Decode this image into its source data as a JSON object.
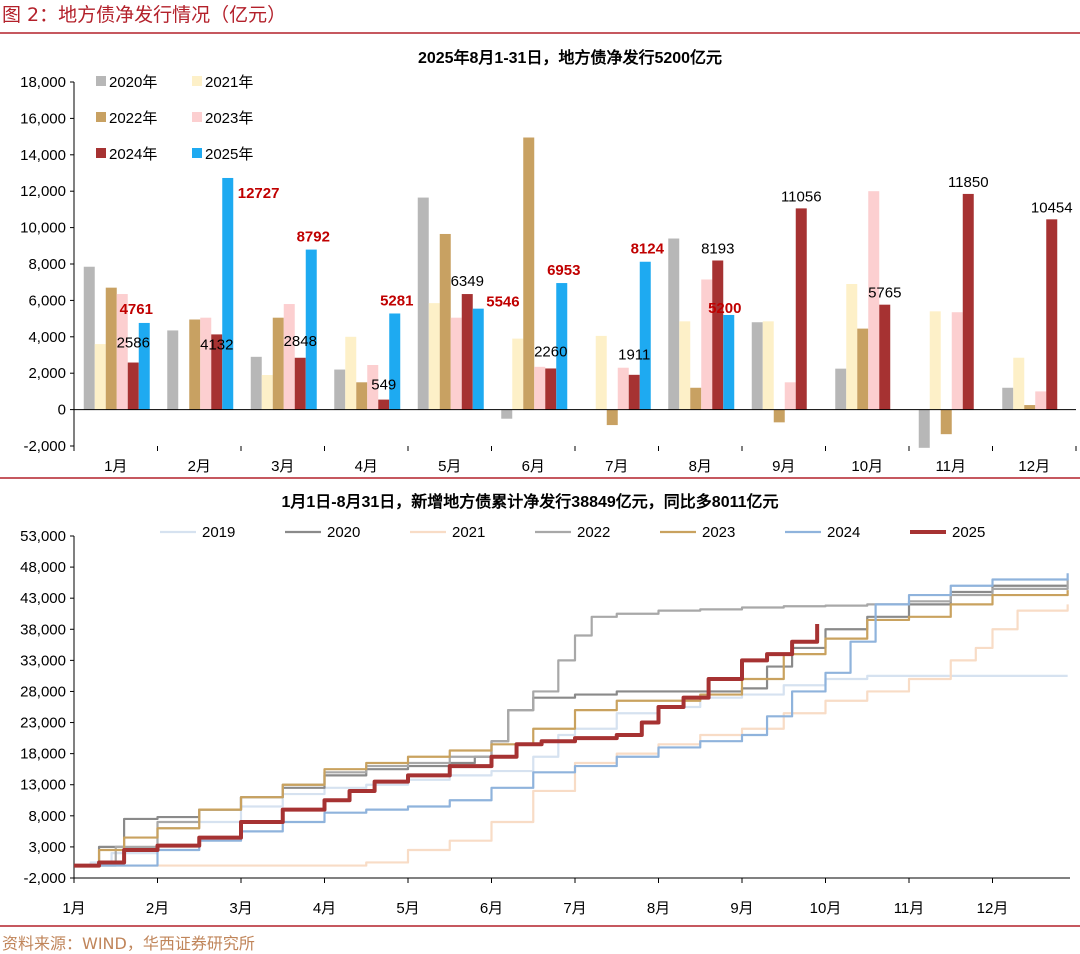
{
  "figure_title": "图 2：地方债净发行情况（亿元）",
  "source": "资料来源：WIND，华西证券研究所",
  "colors": {
    "accent": "#b3202a",
    "source_text": "#c0855a"
  },
  "chart_data": [
    {
      "type": "bar",
      "title": "2025年8月1-31日，地方债净发行5200亿元",
      "categories": [
        "1月",
        "2月",
        "3月",
        "4月",
        "5月",
        "6月",
        "7月",
        "8月",
        "9月",
        "10月",
        "11月",
        "12月"
      ],
      "ylim": [
        -2000,
        18000
      ],
      "yticks": [
        "-2,000",
        "0",
        "2,000",
        "4,000",
        "6,000",
        "8,000",
        "10,000",
        "12,000",
        "14,000",
        "16,000",
        "18,000"
      ],
      "legend_position": "top-left",
      "grid": false,
      "series": [
        {
          "name": "2020年",
          "color": "#b7b7b7",
          "values": [
            7850,
            4350,
            2900,
            2200,
            11650,
            -500,
            0,
            9400,
            4800,
            2250,
            -2100,
            1200
          ]
        },
        {
          "name": "2021年",
          "color": "#fdf0c8",
          "values": [
            3600,
            0,
            1900,
            4000,
            5850,
            3900,
            4050,
            4850,
            4850,
            6900,
            5400,
            2850
          ]
        },
        {
          "name": "2022年",
          "color": "#c8a162",
          "values": [
            6700,
            4950,
            5050,
            1500,
            9650,
            14950,
            -850,
            1200,
            -700,
            4450,
            -1350,
            250
          ]
        },
        {
          "name": "2023年",
          "color": "#fccfd0",
          "values": [
            6350,
            5050,
            5800,
            2450,
            5050,
            2350,
            2300,
            7150,
            1500,
            12000,
            5350,
            1000
          ]
        },
        {
          "name": "2024年",
          "color": "#a63232",
          "values": [
            2586,
            4132,
            2848,
            549,
            6349,
            2260,
            1911,
            8193,
            11056,
            5765,
            11850,
            10454
          ]
        },
        {
          "name": "2025年",
          "color": "#1eaaf1",
          "values": [
            4761,
            12727,
            8792,
            5281,
            5546,
            6953,
            8124,
            5200,
            null,
            null,
            null,
            null
          ]
        }
      ],
      "labels_2024": [
        "2586",
        "4132",
        "2848",
        "549",
        "6349",
        "2260",
        "1911",
        "8193",
        "11056",
        "5765",
        "11850",
        "10454"
      ],
      "labels_2025": [
        "4761",
        "12727",
        "8792",
        "5281",
        "5546",
        "6953",
        "8124",
        "5200"
      ]
    },
    {
      "type": "line",
      "title": "1月1日-8月31日，新增地方债累计净发行38849亿元，同比多8011亿元",
      "xticks": [
        "1月",
        "2月",
        "3月",
        "4月",
        "5月",
        "6月",
        "7月",
        "8月",
        "9月",
        "10月",
        "11月",
        "12月"
      ],
      "ylim": [
        -2000,
        53000
      ],
      "yticks": [
        "-2,000",
        "3,000",
        "8,000",
        "13,000",
        "18,000",
        "23,000",
        "28,000",
        "33,000",
        "38,000",
        "43,000",
        "48,000",
        "53,000"
      ],
      "legend_position": "top",
      "grid": false,
      "series": [
        {
          "name": "2019",
          "color": "#d6e2f0",
          "width": 2.2,
          "points": [
            [
              0,
              0
            ],
            [
              0.2,
              500
            ],
            [
              0.45,
              2000
            ],
            [
              1,
              6000
            ],
            [
              1.5,
              7000
            ],
            [
              2,
              9500
            ],
            [
              2.5,
              11500
            ],
            [
              3,
              12500
            ],
            [
              3.5,
              13000
            ],
            [
              4,
              13800
            ],
            [
              4.5,
              14500
            ],
            [
              5,
              15200
            ],
            [
              5.5,
              17500
            ],
            [
              5.8,
              21000
            ],
            [
              6,
              22000
            ],
            [
              6.5,
              24500
            ],
            [
              7,
              25500
            ],
            [
              7.5,
              27000
            ],
            [
              8,
              27500
            ],
            [
              8.5,
              29000
            ],
            [
              9,
              30000
            ],
            [
              9.5,
              30500
            ],
            [
              11.9,
              30500
            ]
          ]
        },
        {
          "name": "2020",
          "color": "#8a8a8a",
          "width": 2.2,
          "points": [
            [
              0,
              0
            ],
            [
              0.3,
              3000
            ],
            [
              0.6,
              7500
            ],
            [
              1,
              7800
            ],
            [
              1.5,
              9000
            ],
            [
              2,
              11000
            ],
            [
              2.5,
              12500
            ],
            [
              3,
              14500
            ],
            [
              3.5,
              15500
            ],
            [
              4,
              16000
            ],
            [
              4.5,
              16500
            ],
            [
              4.8,
              17500
            ],
            [
              5,
              20000
            ],
            [
              5.2,
              25000
            ],
            [
              5.5,
              27000
            ],
            [
              6,
              27500
            ],
            [
              6.5,
              28000
            ],
            [
              7,
              28000
            ],
            [
              7.5,
              28000
            ],
            [
              8,
              28500
            ],
            [
              8.3,
              32000
            ],
            [
              8.6,
              35000
            ],
            [
              9,
              38000
            ],
            [
              9.5,
              40000
            ],
            [
              10,
              42000
            ],
            [
              10.5,
              44000
            ],
            [
              11,
              45000
            ],
            [
              11.9,
              45000
            ]
          ]
        },
        {
          "name": "2021",
          "color": "#f8dcc6",
          "width": 2.2,
          "points": [
            [
              0,
              0
            ],
            [
              3,
              0
            ],
            [
              3.5,
              500
            ],
            [
              4,
              2500
            ],
            [
              4.5,
              4000
            ],
            [
              5,
              7000
            ],
            [
              5.5,
              12000
            ],
            [
              6,
              16500
            ],
            [
              6.5,
              18000
            ],
            [
              7,
              19500
            ],
            [
              7.5,
              21000
            ],
            [
              8,
              22000
            ],
            [
              8.5,
              24500
            ],
            [
              9,
              26500
            ],
            [
              9.5,
              28000
            ],
            [
              10,
              30000
            ],
            [
              10.5,
              33000
            ],
            [
              10.8,
              35000
            ],
            [
              11,
              38000
            ],
            [
              11.3,
              41000
            ],
            [
              11.9,
              42000
            ]
          ]
        },
        {
          "name": "2022",
          "color": "#a8a8a8",
          "width": 2.2,
          "points": [
            [
              0,
              0
            ],
            [
              0.5,
              3000
            ],
            [
              1,
              7000
            ],
            [
              1.5,
              9000
            ],
            [
              2,
              11000
            ],
            [
              2.5,
              13000
            ],
            [
              3,
              15000
            ],
            [
              3.5,
              16000
            ],
            [
              4,
              16500
            ],
            [
              4.5,
              17500
            ],
            [
              5,
              20000
            ],
            [
              5.2,
              25000
            ],
            [
              5.5,
              28000
            ],
            [
              5.8,
              33000
            ],
            [
              6,
              37000
            ],
            [
              6.2,
              40000
            ],
            [
              6.5,
              40500
            ],
            [
              7,
              41000
            ],
            [
              7.5,
              41200
            ],
            [
              8,
              41500
            ],
            [
              8.5,
              41700
            ],
            [
              9,
              41800
            ],
            [
              9.5,
              42000
            ],
            [
              10,
              42500
            ],
            [
              10.5,
              43500
            ],
            [
              11,
              44500
            ],
            [
              11.9,
              46000
            ]
          ]
        },
        {
          "name": "2023",
          "color": "#c9a25f",
          "width": 2.2,
          "points": [
            [
              0,
              0
            ],
            [
              0.3,
              2500
            ],
            [
              0.6,
              4500
            ],
            [
              1,
              6000
            ],
            [
              1.5,
              9000
            ],
            [
              2,
              11000
            ],
            [
              2.5,
              13000
            ],
            [
              3,
              15500
            ],
            [
              3.5,
              16500
            ],
            [
              4,
              17500
            ],
            [
              4.5,
              18500
            ],
            [
              5,
              19500
            ],
            [
              5.5,
              22000
            ],
            [
              6,
              25000
            ],
            [
              6.5,
              26500
            ],
            [
              7,
              26500
            ],
            [
              7.5,
              27500
            ],
            [
              8,
              30000
            ],
            [
              8.5,
              34000
            ],
            [
              9,
              36500
            ],
            [
              9.5,
              39500
            ],
            [
              10,
              40000
            ],
            [
              10.5,
              42000
            ],
            [
              11,
              43500
            ],
            [
              11.9,
              44300
            ]
          ]
        },
        {
          "name": "2024",
          "color": "#8fb3dc",
          "width": 2.2,
          "points": [
            [
              0,
              0
            ],
            [
              0.5,
              0
            ],
            [
              1,
              2500
            ],
            [
              1.5,
              4000
            ],
            [
              2,
              5500
            ],
            [
              2.5,
              7000
            ],
            [
              3,
              8500
            ],
            [
              3.5,
              9000
            ],
            [
              4,
              9500
            ],
            [
              4.5,
              10500
            ],
            [
              5,
              12500
            ],
            [
              5.5,
              15000
            ],
            [
              6,
              16000
            ],
            [
              6.5,
              17500
            ],
            [
              7,
              19000
            ],
            [
              7.5,
              20000
            ],
            [
              8,
              21000
            ],
            [
              8.3,
              24000
            ],
            [
              8.6,
              28000
            ],
            [
              9,
              31000
            ],
            [
              9.3,
              36000
            ],
            [
              9.6,
              42000
            ],
            [
              10,
              43500
            ],
            [
              10.5,
              45000
            ],
            [
              11,
              46000
            ],
            [
              11.9,
              47000
            ]
          ]
        },
        {
          "name": "2025",
          "color": "#a63232",
          "width": 4,
          "points": [
            [
              0,
              0
            ],
            [
              0.3,
              500
            ],
            [
              0.6,
              2500
            ],
            [
              1,
              3200
            ],
            [
              1.5,
              4500
            ],
            [
              2,
              7000
            ],
            [
              2.5,
              9000
            ],
            [
              3,
              10500
            ],
            [
              3.3,
              12000
            ],
            [
              3.6,
              13500
            ],
            [
              4,
              14500
            ],
            [
              4.5,
              16000
            ],
            [
              5,
              17500
            ],
            [
              5.3,
              19500
            ],
            [
              5.6,
              20000
            ],
            [
              6,
              20500
            ],
            [
              6.5,
              21000
            ],
            [
              6.8,
              23000
            ],
            [
              7,
              25500
            ],
            [
              7.3,
              27000
            ],
            [
              7.6,
              30000
            ],
            [
              8,
              33000
            ],
            [
              8.3,
              34000
            ],
            [
              8.6,
              36000
            ],
            [
              8.9,
              38849
            ]
          ]
        }
      ]
    }
  ]
}
